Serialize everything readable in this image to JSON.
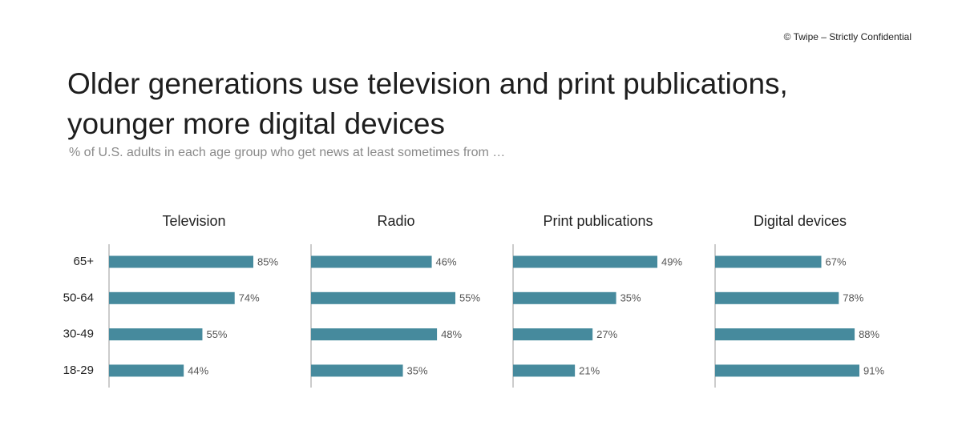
{
  "header": {
    "copyright": "© Twipe – Strictly Confidential"
  },
  "chart_data": {
    "type": "bar",
    "orientation": "horizontal",
    "title": "Older generations use television and print publications, younger more digital devices",
    "subtitle": "% of U.S. adults in each age group who get news at least sometimes from …",
    "color": "#468a9d",
    "categories": [
      "65+",
      "50-64",
      "30-49",
      "18-29"
    ],
    "series": [
      {
        "name": "Television",
        "values": [
          85,
          74,
          55,
          44
        ],
        "value_labels": [
          "85%",
          "74%",
          "55%",
          "44%"
        ]
      },
      {
        "name": "Radio",
        "values": [
          46,
          55,
          48,
          35
        ],
        "value_labels": [
          "46%",
          "55%",
          "48%",
          "35%"
        ]
      },
      {
        "name": "Print publications",
        "values": [
          49,
          35,
          27,
          21
        ],
        "value_labels": [
          "49%",
          "35%",
          "27%",
          "21%"
        ]
      },
      {
        "name": "Digital devices",
        "values": [
          67,
          78,
          88,
          91
        ],
        "value_labels": [
          "67%",
          "78%",
          "88%",
          "91%"
        ]
      }
    ]
  }
}
